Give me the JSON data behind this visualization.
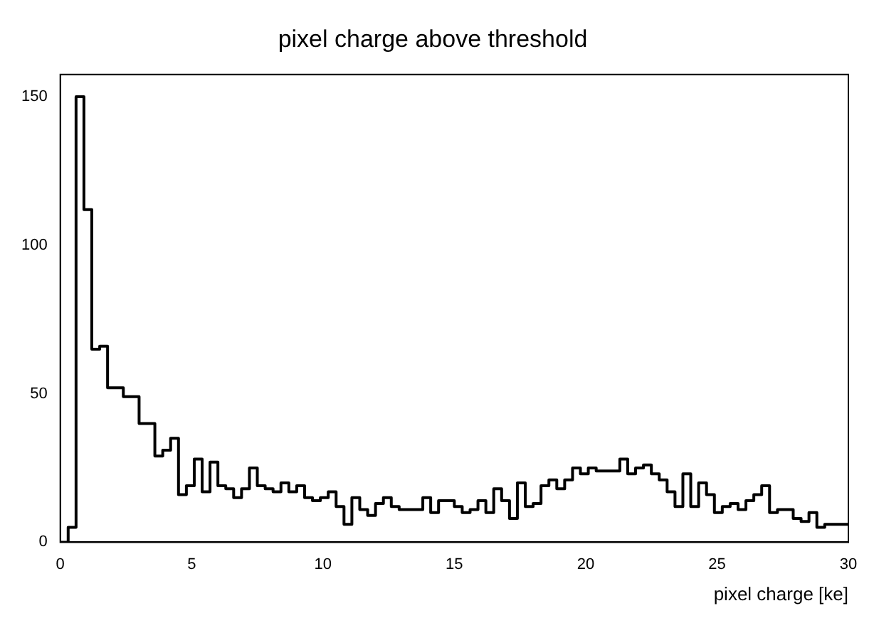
{
  "chart_data": {
    "type": "histogram",
    "title": "pixel charge above threshold",
    "xlabel": "pixel charge [ke]",
    "bins": [
      0,
      0.3,
      0.6,
      0.9,
      1.2,
      1.5,
      1.8,
      2.1,
      2.4,
      2.7,
      3,
      3.3,
      3.6,
      3.9,
      4.2,
      4.5,
      4.8,
      5.1,
      5.4,
      5.7,
      6,
      6.3,
      6.6,
      6.9,
      7.2,
      7.5,
      7.8,
      8.1,
      8.4,
      8.7,
      9,
      9.3,
      9.6,
      9.9,
      10.2,
      10.5,
      10.8,
      11.1,
      11.4,
      11.7,
      12,
      12.3,
      12.6,
      12.9,
      13.2,
      13.5,
      13.8,
      14.1,
      14.4,
      14.7,
      15,
      15.3,
      15.6,
      15.9,
      16.2,
      16.5,
      16.8,
      17.1,
      17.4,
      17.7,
      18,
      18.3,
      18.6,
      18.9,
      19.2,
      19.5,
      19.8,
      20.1,
      20.4,
      20.7,
      21,
      21.3,
      21.6,
      21.9,
      22.2,
      22.5,
      22.8,
      23.1,
      23.4,
      23.7,
      24,
      24.3,
      24.6,
      24.9,
      25.2,
      25.5,
      25.8,
      26.1,
      26.4,
      26.7,
      27,
      27.3,
      27.6,
      27.9,
      28.2,
      28.5,
      28.8,
      29.1,
      29.4,
      29.7,
      30
    ],
    "values": [
      0,
      5,
      150,
      112,
      65,
      66,
      52,
      52,
      49,
      49,
      40,
      40,
      29,
      31,
      35,
      16,
      19,
      28,
      17,
      27,
      19,
      18,
      15,
      18,
      25,
      19,
      18,
      17,
      20,
      17,
      19,
      15,
      14,
      15,
      17,
      12,
      6,
      15,
      11,
      9,
      13,
      15,
      12,
      11,
      11,
      11,
      15,
      10,
      14,
      14,
      12,
      10,
      11,
      14,
      10,
      18,
      14,
      8,
      20,
      12,
      13,
      19,
      21,
      18,
      21,
      25,
      23,
      25,
      24,
      24,
      24,
      28,
      23,
      25,
      26,
      23,
      21,
      17,
      12,
      23,
      12,
      20,
      16,
      10,
      12,
      13,
      11,
      14,
      16,
      19,
      10,
      11,
      11,
      8,
      7,
      10,
      5,
      6,
      6,
      6
    ],
    "color": "#000000",
    "xlim": [
      0,
      30
    ],
    "xticks": [
      0,
      5,
      10,
      15,
      20,
      25,
      30
    ],
    "ylim": [
      0,
      157.5
    ],
    "yticks": [
      0,
      50,
      100,
      150
    ],
    "grid": false,
    "legend": false
  }
}
